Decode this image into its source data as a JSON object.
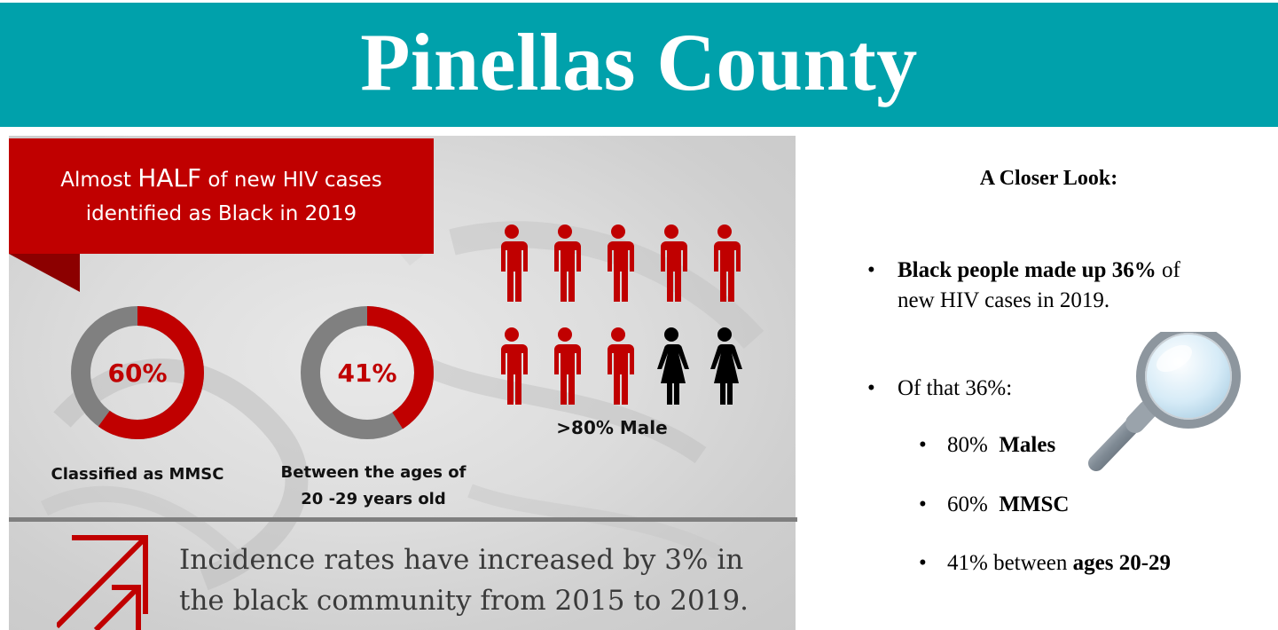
{
  "header": {
    "title": "Pinellas County"
  },
  "banner": {
    "pre": "Almost ",
    "emphasis": "HALF",
    "post": " of new HIV cases",
    "line2": "identified as Black in 2019"
  },
  "donuts": [
    {
      "value_label": "60%",
      "fraction": 0.6,
      "caption": "Classified as MMSC"
    },
    {
      "value_label": "41%",
      "fraction": 0.41,
      "caption_line1": "Between the ages of",
      "caption_line2": "20 -29 years old"
    }
  ],
  "people": {
    "caption": ">80% Male",
    "icons": [
      "male",
      "male",
      "male",
      "male",
      "male",
      "male",
      "male",
      "male",
      "female",
      "female"
    ]
  },
  "incidence": {
    "line1": "Incidence rates have increased by 3% in",
    "line2": "the black community from 2015 to 2019."
  },
  "closer_look": {
    "title": "A Closer Look:",
    "bullet1_bold": "Black people made up 36%",
    "bullet1_rest": " of",
    "bullet1_line2": "new HIV cases in 2019.",
    "bullet2": "Of that 36%:",
    "sub1_value": "80%  ",
    "sub1_bold": "Males",
    "sub2_value": "60%  ",
    "sub2_bold": "MMSC",
    "sub3_value": "41% between ",
    "sub3_bold": "ages 20-29",
    "bullet_glyph": "•"
  },
  "colors": {
    "header": "#00a1ab",
    "accent": "#c00000",
    "donut_rest": "#808080",
    "female": "#000000"
  }
}
